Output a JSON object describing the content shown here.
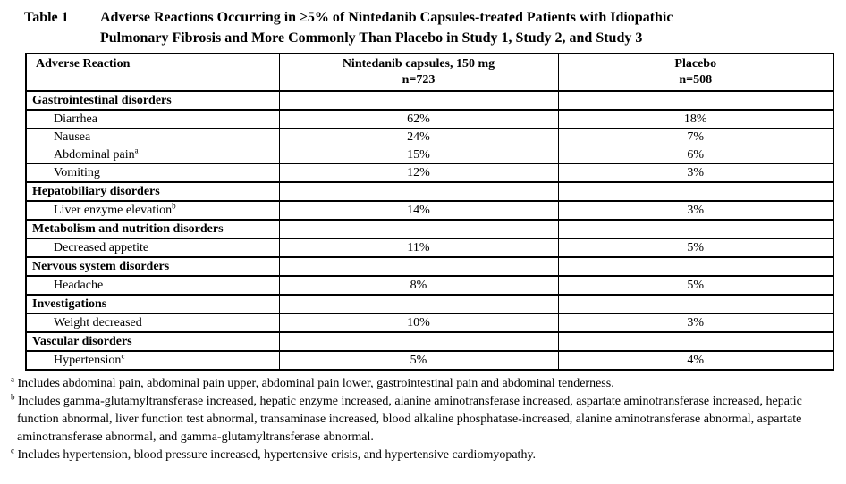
{
  "page": {
    "background_color": "#ffffff",
    "text_color": "#000000",
    "border_color": "#000000"
  },
  "caption": {
    "label": "Table 1",
    "text": "Adverse Reactions Occurring in ≥5% of Nintedanib Capsules-treated Patients with Idiopathic Pulmonary Fibrosis and More Commonly Than Placebo in Study 1, Study 2, and Study 3"
  },
  "table": {
    "header": {
      "col1": "Adverse Reaction",
      "col2_line1": "Nintedanib capsules, 150 mg",
      "col2_line2": "n=723",
      "col3_line1": "Placebo",
      "col3_line2": "n=508"
    },
    "rows": [
      {
        "type": "category",
        "name": "Gastrointestinal disorders",
        "sup": "",
        "nintedanib": "",
        "placebo": ""
      },
      {
        "type": "data",
        "name": "Diarrhea",
        "sup": "",
        "nintedanib": "62%",
        "placebo": "18%"
      },
      {
        "type": "data",
        "name": "Nausea",
        "sup": "",
        "nintedanib": "24%",
        "placebo": "7%"
      },
      {
        "type": "data",
        "name": "Abdominal pain",
        "sup": "a",
        "nintedanib": "15%",
        "placebo": "6%"
      },
      {
        "type": "data",
        "name": "Vomiting",
        "sup": "",
        "nintedanib": "12%",
        "placebo": "3%"
      },
      {
        "type": "category",
        "name": "Hepatobiliary disorders",
        "sup": "",
        "nintedanib": "",
        "placebo": ""
      },
      {
        "type": "data",
        "name": "Liver enzyme elevation",
        "sup": "b",
        "nintedanib": "14%",
        "placebo": "3%"
      },
      {
        "type": "category",
        "name": "Metabolism and nutrition disorders",
        "sup": "",
        "nintedanib": "",
        "placebo": ""
      },
      {
        "type": "data",
        "name": "Decreased appetite",
        "sup": "",
        "nintedanib": "11%",
        "placebo": "5%"
      },
      {
        "type": "category",
        "name": "Nervous system disorders",
        "sup": "",
        "nintedanib": "",
        "placebo": ""
      },
      {
        "type": "data",
        "name": "Headache",
        "sup": "",
        "nintedanib": "8%",
        "placebo": "5%"
      },
      {
        "type": "category",
        "name": "Investigations",
        "sup": "",
        "nintedanib": "",
        "placebo": ""
      },
      {
        "type": "data",
        "name": "Weight decreased",
        "sup": "",
        "nintedanib": "10%",
        "placebo": "3%"
      },
      {
        "type": "category",
        "name": "Vascular disorders",
        "sup": "",
        "nintedanib": "",
        "placebo": ""
      },
      {
        "type": "data",
        "name": "Hypertension",
        "sup": "c",
        "nintedanib": "5%",
        "placebo": "4%"
      }
    ]
  },
  "footnotes": [
    {
      "marker": "a",
      "text": "Includes abdominal pain, abdominal pain upper, abdominal pain lower, gastrointestinal pain and abdominal tenderness."
    },
    {
      "marker": "b",
      "text": "Includes gamma-glutamyltransferase increased, hepatic enzyme increased, alanine aminotransferase increased, aspartate aminotransferase increased, hepatic function abnormal, liver function test abnormal, transaminase increased, blood alkaline phosphatase-increased, alanine aminotransferase abnormal, aspartate aminotransferase abnormal, and gamma-glutamyltransferase abnormal."
    },
    {
      "marker": "c",
      "text": "Includes hypertension, blood pressure increased, hypertensive crisis, and hypertensive cardiomyopathy."
    }
  ]
}
